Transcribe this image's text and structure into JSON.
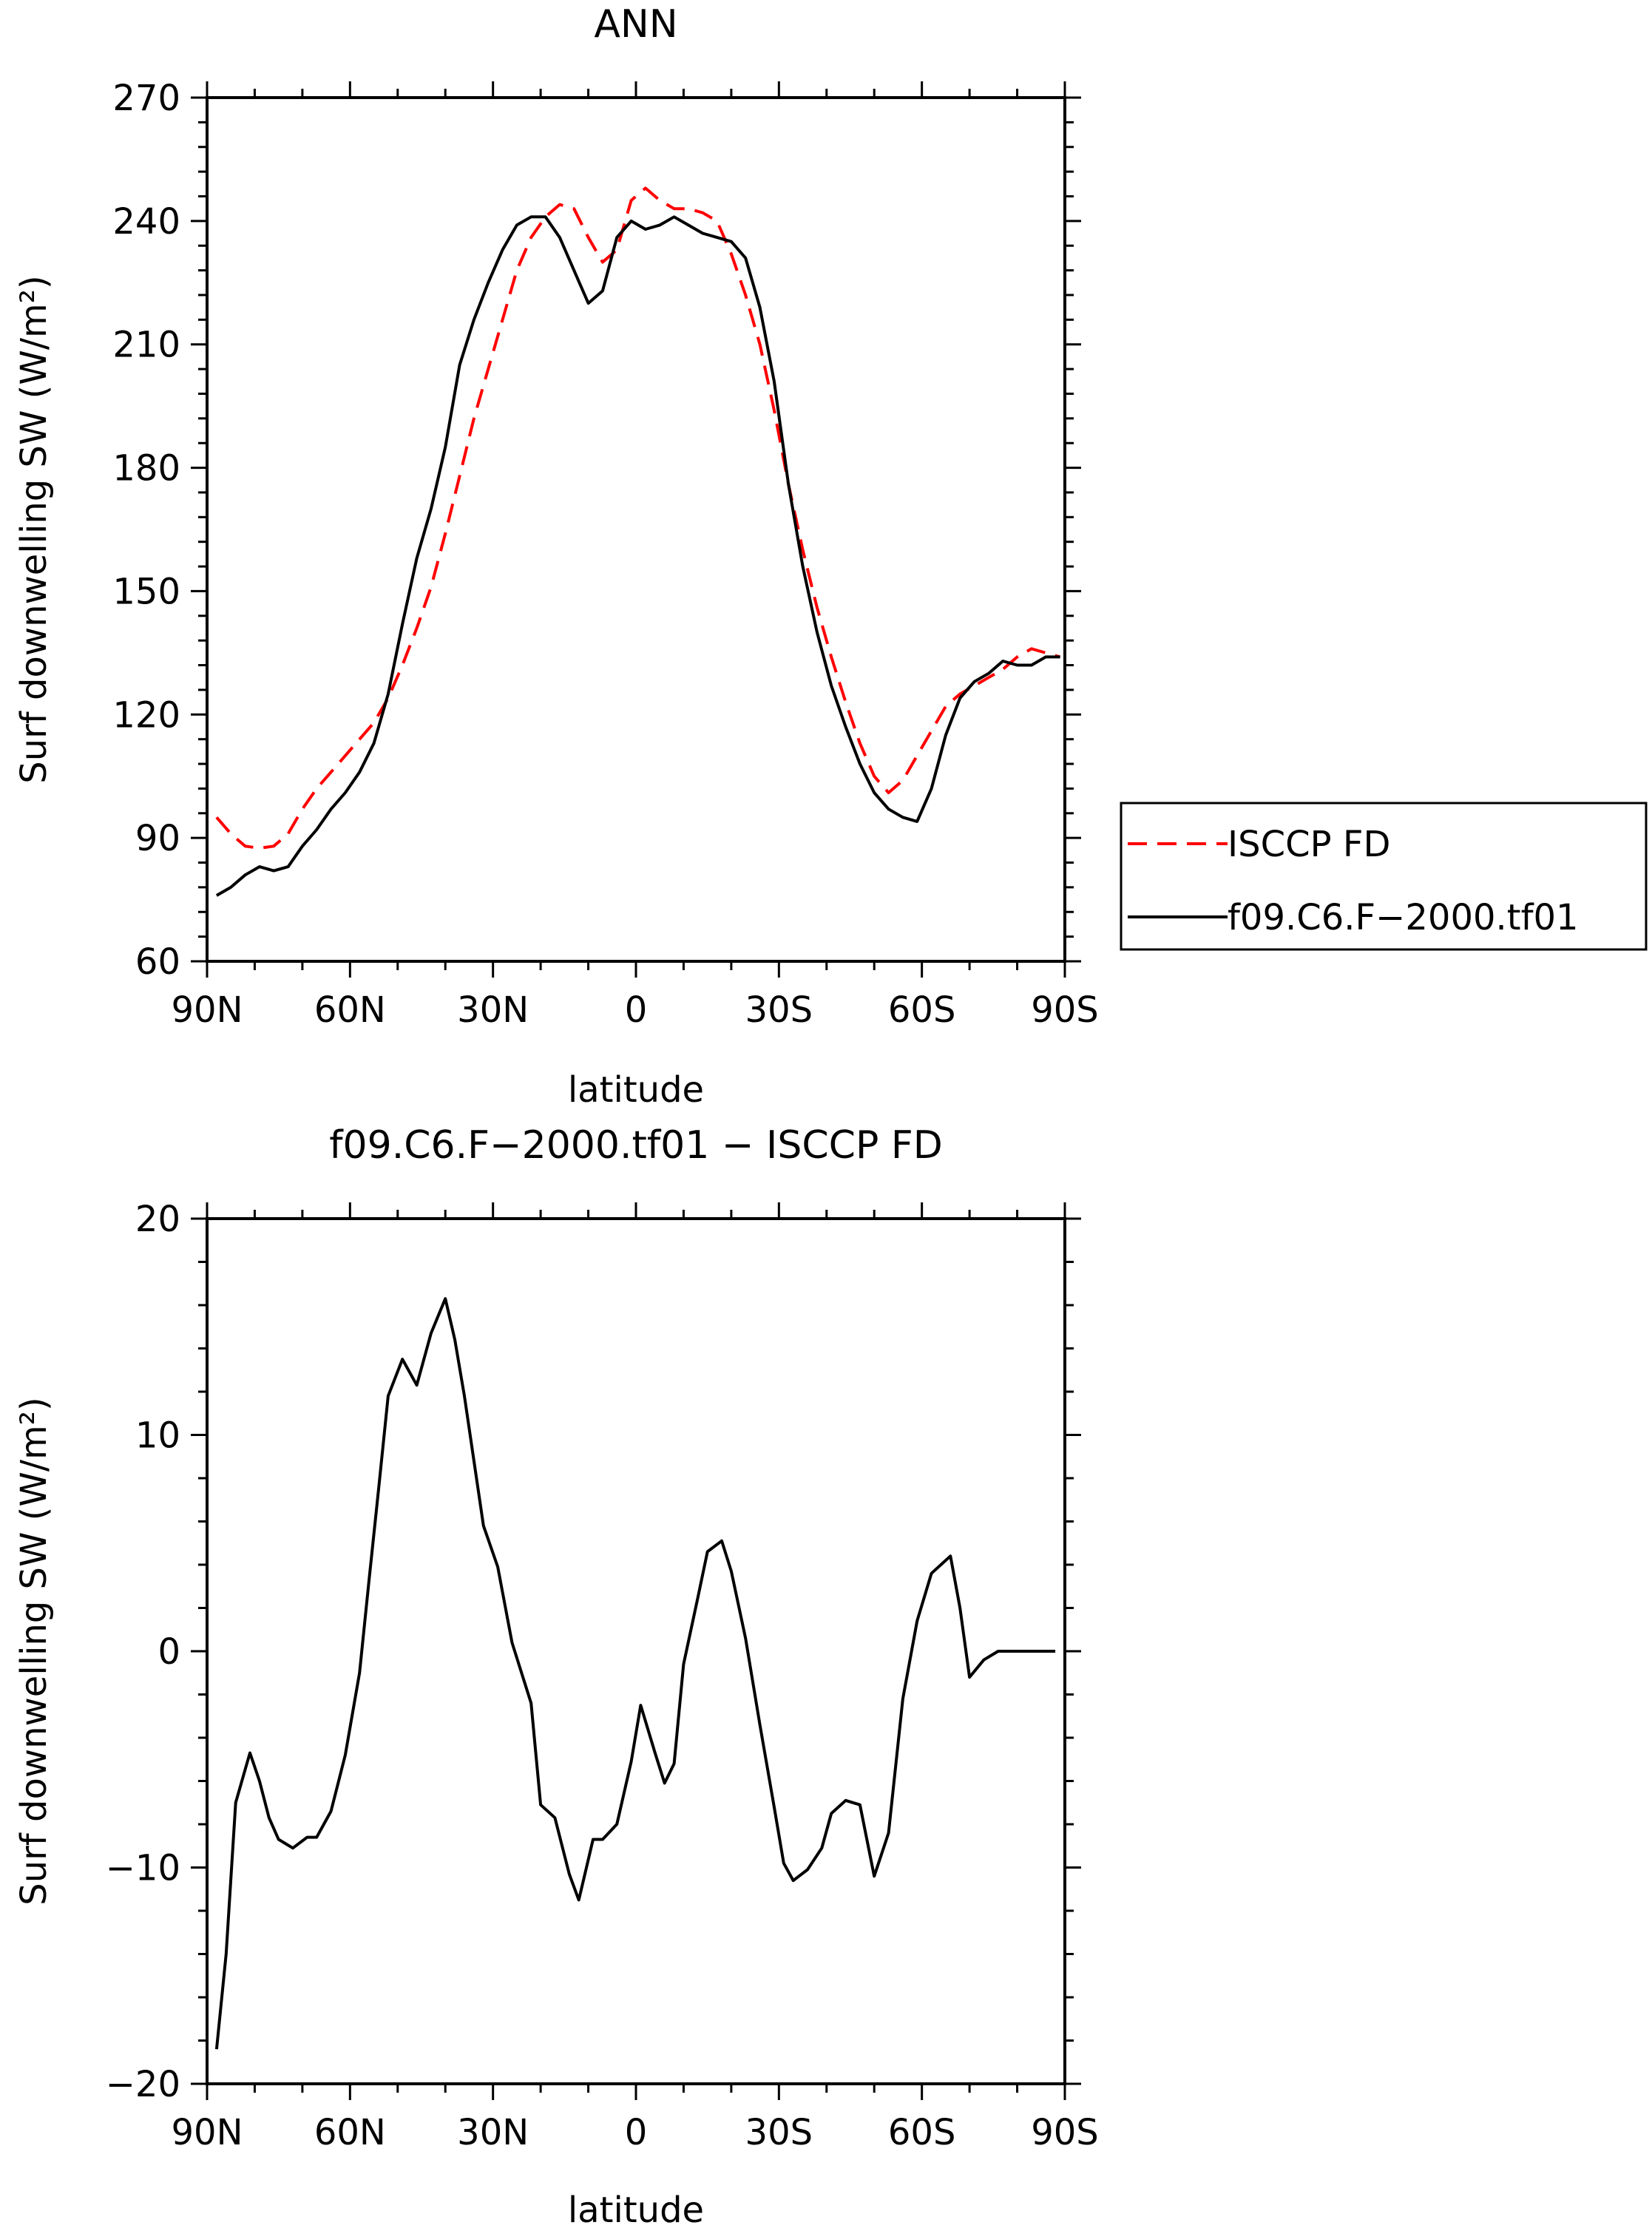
{
  "chart_data": [
    {
      "type": "line",
      "title": "ANN",
      "xlabel": "latitude",
      "ylabel": "Surf downwelling SW (W/m²)",
      "xlim": [
        90,
        -90
      ],
      "ylim": [
        60,
        270
      ],
      "xticks": [
        90,
        60,
        30,
        0,
        -30,
        -60,
        -90
      ],
      "xtick_labels": [
        "90N",
        "60N",
        "30N",
        "0",
        "30S",
        "60S",
        "90S"
      ],
      "yticks": [
        60,
        90,
        120,
        150,
        180,
        210,
        240,
        270
      ],
      "ytick_labels": [
        "60",
        "90",
        "120",
        "150",
        "180",
        "210",
        "240",
        "270"
      ],
      "legend": {
        "placement": "outside-right"
      },
      "series": [
        {
          "name": "ISCCP FD",
          "color": "#ff0000",
          "dash": "dashed",
          "x": [
            88,
            85,
            82,
            79,
            76,
            73,
            70,
            67,
            64,
            61,
            58,
            55,
            52,
            49,
            46,
            43,
            40,
            37,
            34,
            31,
            28,
            25,
            22,
            19,
            16,
            13,
            10,
            7,
            4,
            1,
            -2,
            -5,
            -8,
            -11,
            -14,
            -17,
            -20,
            -23,
            -26,
            -29,
            -32,
            -35,
            -38,
            -41,
            -44,
            -47,
            -50,
            -53,
            -56,
            -59,
            -62,
            -65,
            -68,
            -71,
            -74,
            -77,
            -80,
            -83,
            -86,
            -89
          ],
          "y": [
            95,
            91,
            88,
            87.5,
            88,
            91,
            97,
            102,
            106,
            110,
            114,
            118,
            124,
            132,
            141,
            151,
            164,
            178,
            192,
            204,
            216,
            228,
            236,
            241,
            244,
            243,
            236,
            230,
            233,
            245,
            248,
            245,
            243,
            243,
            242,
            240,
            232,
            222,
            210,
            194,
            176,
            160,
            146,
            134,
            123,
            113,
            105,
            101,
            104,
            110,
            116,
            122,
            125,
            127,
            129,
            131,
            134,
            136,
            135,
            134
          ]
        },
        {
          "name": "f09.C6.F-2000.tf01",
          "color": "#000000",
          "dash": "solid",
          "x": [
            88,
            85,
            82,
            79,
            76,
            73,
            70,
            67,
            64,
            61,
            58,
            55,
            52,
            49,
            46,
            43,
            40,
            37,
            34,
            31,
            28,
            25,
            22,
            19,
            16,
            13,
            10,
            7,
            4,
            1,
            -2,
            -5,
            -8,
            -11,
            -14,
            -17,
            -20,
            -23,
            -26,
            -29,
            -32,
            -35,
            -38,
            -41,
            -44,
            -47,
            -50,
            -53,
            -56,
            -59,
            -62,
            -65,
            -68,
            -71,
            -74,
            -77,
            -80,
            -83,
            -86,
            -89
          ],
          "y": [
            76,
            78,
            81,
            83,
            82,
            83,
            88,
            92,
            97,
            101,
            106,
            113,
            125,
            142,
            158,
            170,
            185,
            205,
            216,
            225,
            233,
            239,
            241,
            241,
            236,
            228,
            220,
            223,
            236,
            240,
            238,
            239,
            241,
            239,
            237,
            236,
            235,
            231,
            219,
            201,
            176,
            156,
            140,
            127,
            117,
            108,
            101,
            97,
            95,
            94,
            102,
            115,
            124,
            128,
            130,
            133,
            132,
            132,
            134,
            134
          ]
        }
      ]
    },
    {
      "type": "line",
      "title": "f09.C6.F−2000.tf01 − ISCCP FD",
      "xlabel": "latitude",
      "ylabel": "Surf downwelling SW (W/m²)",
      "xlim": [
        90,
        -90
      ],
      "ylim": [
        -20,
        20
      ],
      "xticks": [
        90,
        60,
        30,
        0,
        -30,
        -60,
        -90
      ],
      "xtick_labels": [
        "90N",
        "60N",
        "30N",
        "0",
        "30S",
        "60S",
        "90S"
      ],
      "yticks": [
        -20,
        -10,
        0,
        10,
        20
      ],
      "ytick_labels": [
        "−20",
        "−10",
        "0",
        "10",
        "20"
      ],
      "series": [
        {
          "color": "#000000",
          "dash": "solid",
          "x": [
            88,
            86,
            84,
            81,
            79,
            77,
            75,
            72,
            69,
            67,
            64,
            61,
            58,
            56,
            54,
            52,
            49,
            46,
            43,
            40,
            38,
            36,
            34,
            32,
            29,
            26,
            22,
            20,
            17,
            14,
            12,
            9,
            7,
            4,
            1,
            -1,
            -4,
            -6,
            -8,
            -10,
            -13,
            -15,
            -18,
            -20,
            -23,
            -26,
            -29,
            -31,
            -33,
            -36,
            -39,
            -41,
            -44,
            -47,
            -50,
            -53,
            -56,
            -59,
            -62,
            -64,
            -66,
            -68,
            -70,
            -73,
            -76,
            -79,
            -81,
            -83,
            -85,
            -88
          ],
          "y": [
            -18.4,
            -14,
            -7,
            -4.7,
            -6,
            -7.7,
            -8.7,
            -9.1,
            -8.6,
            -8.6,
            -7.4,
            -4.8,
            -1,
            3.3,
            7.5,
            11.8,
            13.5,
            12.3,
            14.7,
            16.3,
            14.4,
            11.8,
            8.8,
            5.8,
            3.9,
            0.4,
            -2.4,
            -7.1,
            -7.7,
            -10.3,
            -11.5,
            -8.7,
            -8.7,
            -8,
            -5.1,
            -2.5,
            -4.7,
            -6.1,
            -5.2,
            -0.6,
            2.5,
            4.6,
            5.1,
            3.7,
            0.6,
            -3.4,
            -7.2,
            -9.8,
            -10.6,
            -10.1,
            -9.1,
            -7.5,
            -6.9,
            -7.1,
            -10.4,
            -8.4,
            -2.2,
            1.4,
            3.6,
            4,
            4.4,
            2,
            -1.2,
            -0.4,
            0,
            0,
            0,
            0,
            0,
            0
          ]
        }
      ]
    }
  ],
  "legend_entries": [
    "ISCCP FD",
    "f09.C6.F−2000.tf01"
  ]
}
